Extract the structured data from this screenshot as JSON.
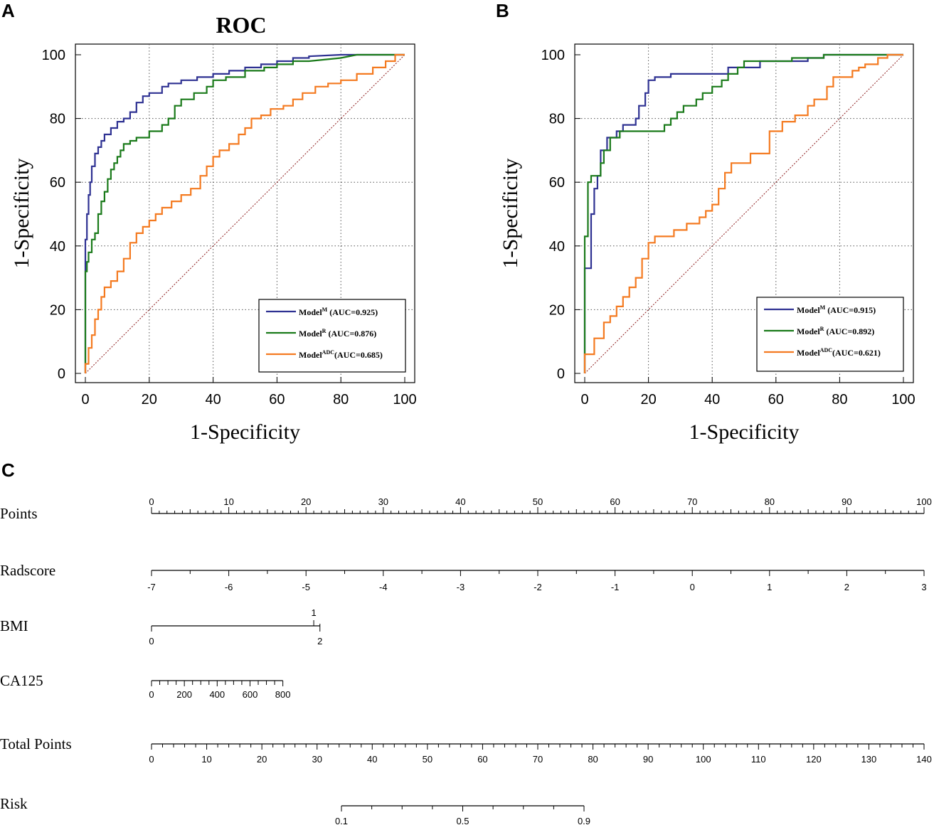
{
  "panels": {
    "a": "A",
    "b": "B",
    "c": "C"
  },
  "colors": {
    "model_m": "#2e3192",
    "model_r": "#1a7a1a",
    "model_adc": "#f47a20",
    "diagonal": "#8b1a1a"
  },
  "chart_data": [
    {
      "id": "roc_a",
      "type": "line",
      "title": "ROC",
      "xlabel": "1-Specificity",
      "ylabel": "1-Specificity",
      "xlim": [
        0,
        100
      ],
      "ylim": [
        0,
        100
      ],
      "xticks": [
        "0",
        "20",
        "40",
        "60",
        "80",
        "100"
      ],
      "yticks": [
        "0",
        "20",
        "40",
        "60",
        "80",
        "100"
      ],
      "grid": true,
      "legend_position": "bottom-right",
      "series": [
        {
          "name": "Model",
          "sup": "M",
          "auc_label": " (AUC=0.925)",
          "color": "#2e3192",
          "x": [
            0,
            0,
            0.5,
            0.5,
            1,
            1,
            1.5,
            1.5,
            2,
            2,
            3,
            3,
            4,
            4,
            5,
            5,
            6,
            6,
            8,
            8,
            10,
            10,
            12,
            12,
            14,
            14,
            16,
            16,
            18,
            18,
            20,
            20,
            24,
            24,
            26,
            26,
            30,
            30,
            35,
            35,
            40,
            40,
            45,
            45,
            50,
            50,
            55,
            55,
            60,
            60,
            65,
            65,
            70,
            70,
            80,
            85,
            90,
            95,
            100
          ],
          "y": [
            0,
            42,
            42,
            50,
            50,
            56,
            56,
            60,
            60,
            65,
            65,
            69,
            69,
            71,
            71,
            73,
            73,
            75,
            75,
            77,
            77,
            79,
            79,
            80,
            80,
            82,
            82,
            85,
            85,
            87,
            87,
            88,
            88,
            90,
            90,
            91,
            91,
            92,
            92,
            93,
            93,
            94,
            94,
            95,
            95,
            96,
            96,
            97,
            97,
            98,
            98,
            99,
            99,
            99.5,
            100,
            100,
            100,
            100,
            100
          ]
        },
        {
          "name": "Model",
          "sup": "R",
          "auc_label": " (AUC=0.876)",
          "color": "#1a7a1a",
          "x": [
            0,
            0,
            0.5,
            0.5,
            1,
            1,
            2,
            2,
            3,
            3,
            4,
            4,
            5,
            5,
            6,
            6,
            7,
            7,
            8,
            8,
            9,
            9,
            10,
            10,
            11,
            11,
            12,
            12,
            14,
            14,
            16,
            16,
            20,
            20,
            24,
            24,
            26,
            26,
            28,
            28,
            30,
            30,
            34,
            34,
            38,
            38,
            40,
            40,
            44,
            44,
            50,
            50,
            56,
            56,
            60,
            60,
            65,
            65,
            70,
            80,
            85,
            100
          ],
          "y": [
            0,
            32,
            32,
            35,
            35,
            38,
            38,
            42,
            42,
            44,
            44,
            50,
            50,
            54,
            54,
            57,
            57,
            61,
            61,
            64,
            64,
            66,
            66,
            68,
            68,
            70,
            70,
            72,
            72,
            73,
            73,
            74,
            74,
            76,
            76,
            78,
            78,
            80,
            80,
            84,
            84,
            86,
            86,
            88,
            88,
            90,
            90,
            92,
            92,
            93,
            93,
            95,
            95,
            96,
            96,
            97,
            97,
            98,
            98,
            99,
            100,
            100
          ]
        },
        {
          "name": "Model",
          "sup": "ADC",
          "auc_label": "(AUC=0.685)",
          "color": "#f47a20",
          "x": [
            0,
            0,
            1,
            1,
            2,
            2,
            3,
            3,
            4,
            4,
            5,
            5,
            6,
            6,
            8,
            8,
            10,
            10,
            12,
            12,
            14,
            14,
            16,
            16,
            18,
            18,
            20,
            20,
            22,
            22,
            24,
            24,
            27,
            27,
            30,
            30,
            33,
            33,
            36,
            36,
            38,
            38,
            40,
            40,
            42,
            42,
            45,
            45,
            48,
            48,
            50,
            50,
            52,
            52,
            55,
            55,
            58,
            58,
            62,
            62,
            65,
            65,
            68,
            68,
            72,
            72,
            76,
            76,
            80,
            80,
            85,
            85,
            90,
            90,
            94,
            94,
            97,
            97,
            100
          ],
          "y": [
            0,
            3,
            3,
            8,
            8,
            12,
            12,
            17,
            17,
            20,
            20,
            24,
            24,
            27,
            27,
            29,
            29,
            32,
            32,
            36,
            36,
            41,
            41,
            44,
            44,
            46,
            46,
            48,
            48,
            50,
            50,
            52,
            52,
            54,
            54,
            56,
            56,
            58,
            58,
            62,
            62,
            65,
            65,
            68,
            68,
            70,
            70,
            72,
            72,
            75,
            75,
            77,
            77,
            80,
            80,
            81,
            81,
            83,
            83,
            84,
            84,
            86,
            86,
            88,
            88,
            90,
            90,
            91,
            91,
            92,
            92,
            94,
            94,
            96,
            96,
            98,
            98,
            100,
            100
          ]
        }
      ]
    },
    {
      "id": "roc_b",
      "type": "line",
      "title": "",
      "xlabel": "1-Specificity",
      "ylabel": "1-Specificity",
      "xlim": [
        0,
        100
      ],
      "ylim": [
        0,
        100
      ],
      "xticks": [
        "0",
        "20",
        "40",
        "60",
        "80",
        "100"
      ],
      "yticks": [
        "0",
        "20",
        "40",
        "60",
        "80",
        "100"
      ],
      "grid": true,
      "legend_position": "bottom-right",
      "series": [
        {
          "name": "Model",
          "sup": "M",
          "auc_label": " (AUC=0.915)",
          "color": "#2e3192",
          "x": [
            0,
            0,
            2,
            2,
            3,
            3,
            4,
            4,
            5,
            5,
            7,
            7,
            10,
            10,
            12,
            12,
            16,
            16,
            17,
            17,
            19,
            19,
            20,
            20,
            22,
            22,
            27,
            27,
            45,
            45,
            55,
            55,
            70,
            70,
            75,
            75,
            90,
            100
          ],
          "y": [
            0,
            33,
            33,
            50,
            50,
            58,
            58,
            62,
            62,
            70,
            70,
            74,
            74,
            76,
            76,
            78,
            78,
            80,
            80,
            84,
            84,
            88,
            88,
            92,
            92,
            93,
            93,
            94,
            94,
            96,
            96,
            98,
            98,
            99,
            99,
            100,
            100,
            100
          ]
        },
        {
          "name": "Model",
          "sup": "R",
          "auc_label": " (AUC=0.892)",
          "color": "#1a7a1a",
          "x": [
            0,
            0,
            1,
            1,
            2,
            2,
            5,
            5,
            6,
            6,
            8,
            8,
            11,
            11,
            25,
            25,
            27,
            27,
            29,
            29,
            31,
            31,
            35,
            35,
            37,
            37,
            40,
            40,
            43,
            43,
            45,
            45,
            48,
            48,
            50,
            50,
            65,
            65,
            75,
            75,
            95,
            100
          ],
          "y": [
            0,
            43,
            43,
            60,
            60,
            62,
            62,
            66,
            66,
            70,
            70,
            74,
            74,
            76,
            76,
            78,
            78,
            80,
            80,
            82,
            82,
            84,
            84,
            86,
            86,
            88,
            88,
            90,
            90,
            92,
            92,
            94,
            94,
            96,
            96,
            98,
            98,
            99,
            99,
            100,
            100,
            100
          ]
        },
        {
          "name": "Model",
          "sup": "ADC",
          "auc_label": "(AUC=0.621)",
          "color": "#f47a20",
          "x": [
            0,
            0,
            3,
            3,
            6,
            6,
            8,
            8,
            10,
            10,
            12,
            12,
            14,
            14,
            16,
            16,
            18,
            18,
            20,
            20,
            22,
            22,
            28,
            28,
            32,
            32,
            36,
            36,
            38,
            38,
            40,
            40,
            42,
            42,
            44,
            44,
            46,
            46,
            52,
            52,
            58,
            58,
            62,
            62,
            66,
            66,
            70,
            70,
            72,
            72,
            76,
            76,
            78,
            78,
            84,
            84,
            86,
            86,
            88,
            88,
            92,
            92,
            95,
            95,
            100
          ],
          "y": [
            0,
            6,
            6,
            11,
            11,
            16,
            16,
            18,
            18,
            21,
            21,
            24,
            24,
            27,
            27,
            30,
            30,
            36,
            36,
            41,
            41,
            43,
            43,
            45,
            45,
            47,
            47,
            49,
            49,
            51,
            51,
            53,
            53,
            58,
            58,
            63,
            63,
            66,
            66,
            69,
            69,
            76,
            76,
            79,
            79,
            81,
            81,
            84,
            84,
            86,
            86,
            90,
            90,
            93,
            93,
            95,
            95,
            96,
            96,
            97,
            97,
            99,
            99,
            100,
            100
          ]
        }
      ]
    },
    {
      "id": "nomogram",
      "type": "nomogram",
      "rows": [
        {
          "label": "Points",
          "ticks": [
            "0",
            "10",
            "20",
            "30",
            "40",
            "50",
            "60",
            "70",
            "80",
            "90",
            "100"
          ]
        },
        {
          "label": "Radscore",
          "ticks": [
            "-7",
            "-6",
            "-5",
            "-4",
            "-3",
            "-2",
            "-1",
            "0",
            "1",
            "2",
            "3"
          ]
        },
        {
          "label": "BMI",
          "ticks": [
            "0",
            "1",
            "2"
          ]
        },
        {
          "label": "CA125",
          "ticks": [
            "0",
            "200",
            "400",
            "600",
            "800"
          ]
        },
        {
          "label": "Total Points",
          "ticks": [
            "0",
            "10",
            "20",
            "30",
            "40",
            "50",
            "60",
            "70",
            "80",
            "90",
            "100",
            "110",
            "120",
            "130",
            "140"
          ]
        },
        {
          "label": "Risk",
          "ticks": [
            "0.1",
            "0.5",
            "0.9"
          ]
        }
      ]
    }
  ]
}
